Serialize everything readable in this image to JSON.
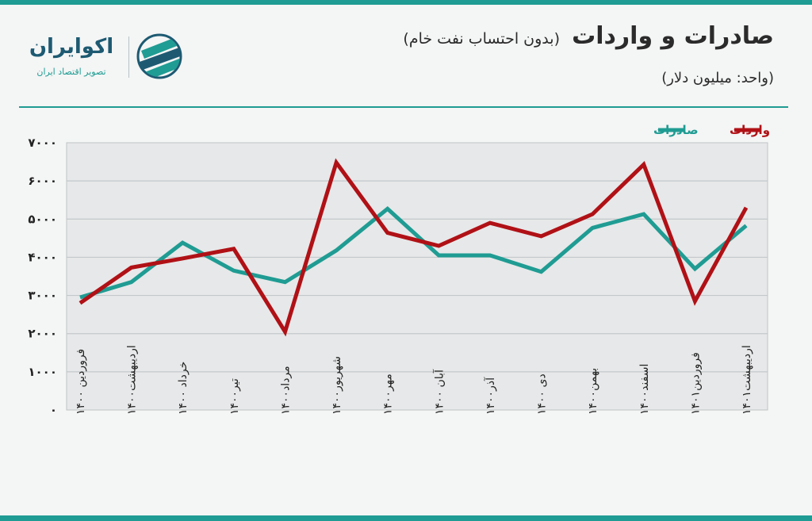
{
  "header": {
    "title": "صادرات و واردات",
    "subtitle": "(بدون احتساب نفت خام)",
    "unit": "(واحد: میلیون دلار)"
  },
  "logo": {
    "brand": "اکوایران",
    "tagline": "تصویر اقتصاد ایران",
    "icon": "stripes-circle-icon"
  },
  "colors": {
    "accent": "#1f9c93",
    "exports": "#1f9c93",
    "imports": "#b01116"
  },
  "chart_data": {
    "type": "line",
    "title": "صادرات و واردات",
    "ylim": [
      0,
      7000
    ],
    "yticks": [
      "۰",
      "۱۰۰۰",
      "۲۰۰۰",
      "۳۰۰۰",
      "۴۰۰۰",
      "۵۰۰۰",
      "۶۰۰۰",
      "۷۰۰۰"
    ],
    "ytick_values": [
      0,
      1000,
      2000,
      3000,
      4000,
      5000,
      6000,
      7000
    ],
    "grid": true,
    "legend": "top-right",
    "categories": [
      "فروردین ۱۴۰۰",
      "اردیبهشت۱۴۰۰",
      "خرداد ۱۴۰۰",
      "تیر۱۴۰۰",
      "مرداد۱۴۰۰",
      "شهریور۱۴۰۰",
      "مهر۱۴۰۰",
      "آبان ۱۴۰۰",
      "آذر۱۴۰۰",
      "دی ۱۴۰۰",
      "بهمن۱۴۰۰",
      "اسفند۱۴۰۰",
      "فروردین۱۴۰۱",
      "اردیبهشت۱۴۰۱"
    ],
    "series": [
      {
        "name": "صادرات",
        "color": "#1f9c93",
        "values": [
          2950,
          3350,
          4380,
          3650,
          3350,
          4180,
          5270,
          4050,
          4050,
          3620,
          4770,
          5130,
          3700,
          4830
        ]
      },
      {
        "name": "واردات",
        "color": "#b01116",
        "values": [
          2800,
          3730,
          3970,
          4220,
          2050,
          6480,
          4640,
          4300,
          4900,
          4550,
          5130,
          6430,
          2850,
          5300
        ]
      }
    ]
  }
}
